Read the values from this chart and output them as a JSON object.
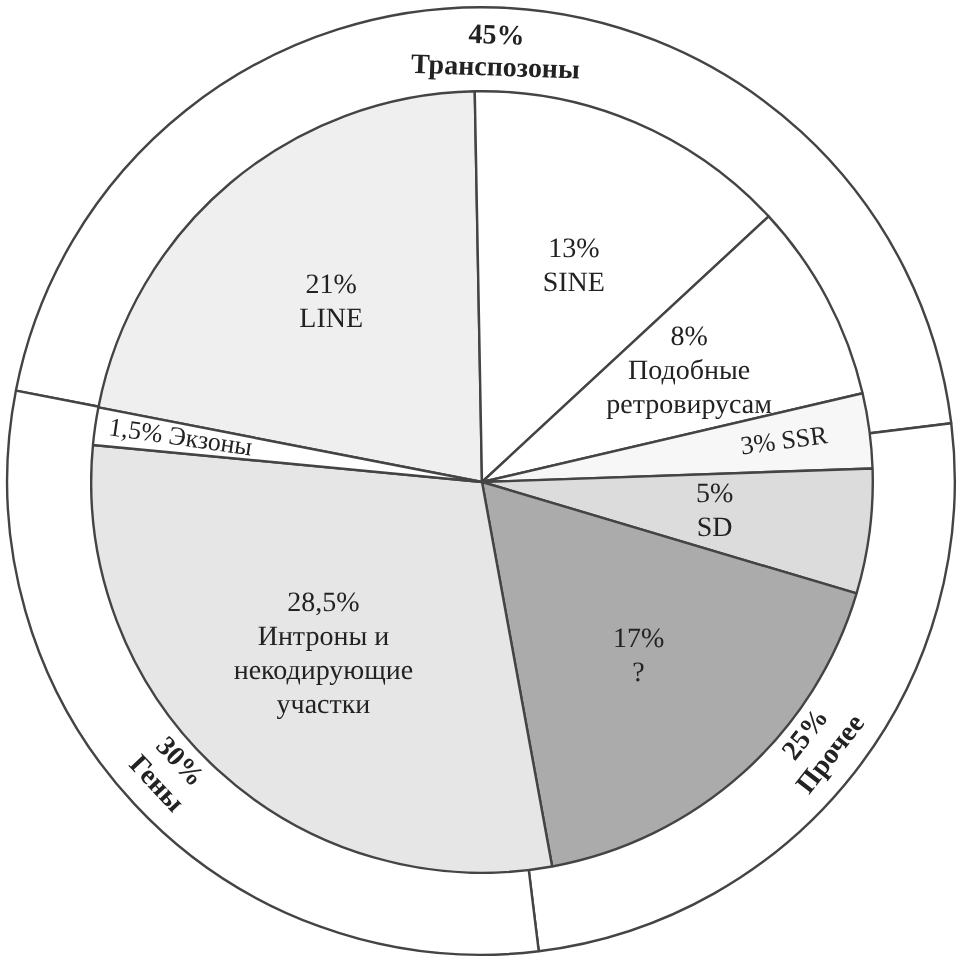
{
  "chart_data": [
    {
      "type": "donut",
      "legend": false,
      "categories": [
        "Транспозоны",
        "Прочее",
        "Гены"
      ],
      "values": [
        45,
        25,
        30
      ],
      "value_labels": [
        "45%",
        "25%",
        "30%"
      ],
      "colors": [
        "#ffffff",
        "#ffffff",
        "#ffffff"
      ]
    },
    {
      "type": "pie",
      "legend": false,
      "categories": [
        "LINE",
        "SINE",
        "Подобные ретровирусам",
        "SSR",
        "SD",
        "?",
        "Интроны и некодирующие участки",
        "Экзоны"
      ],
      "values": [
        21,
        13,
        8,
        3,
        5,
        17,
        28.5,
        1.5
      ],
      "value_labels": [
        "21%",
        "13%",
        "8%",
        "3%",
        "5%",
        "17%",
        "28,5%",
        "1,5%"
      ],
      "colors": [
        "#efefef",
        "#ffffff",
        "#ffffff",
        "#f7f7f7",
        "#dcdcdc",
        "#ababab",
        "#e6e6e6",
        "#ffffff"
      ]
    }
  ]
}
